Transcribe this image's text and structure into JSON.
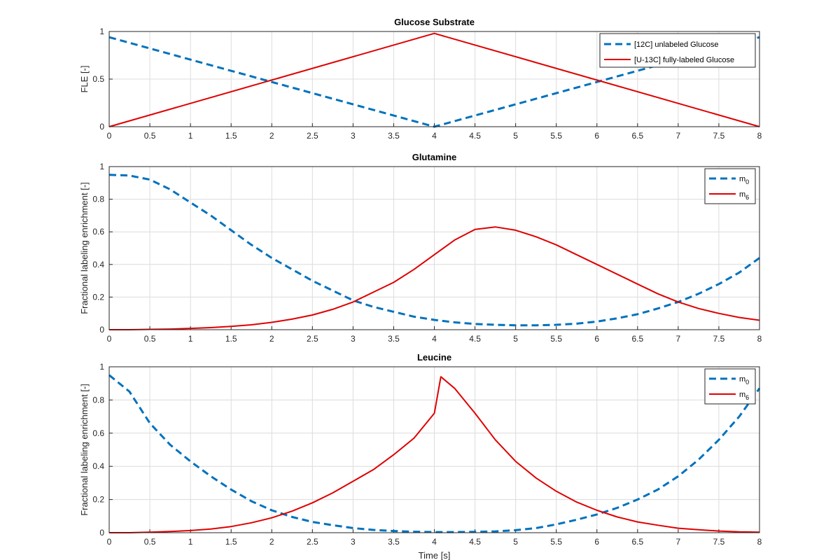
{
  "chart_data": [
    {
      "type": "line",
      "title": "Glucose Substrate",
      "xlabel": "",
      "ylabel": "FLE [-]",
      "xlim": [
        0,
        8
      ],
      "ylim": [
        0,
        1
      ],
      "xticks": [
        "0",
        "0.5",
        "1",
        "1.5",
        "2",
        "2.5",
        "3",
        "3.5",
        "4",
        "4.5",
        "5",
        "5.5",
        "6",
        "6.5",
        "7",
        "7.5",
        "8"
      ],
      "yticks": [
        "0",
        "0.5",
        "1"
      ],
      "grid": true,
      "legend_position": "top-right",
      "series": [
        {
          "name": "[12C] unlabeled Glucose",
          "legend_main": "[12C] unlabeled Glucose",
          "legend_sub": "",
          "color": "#0072BD",
          "style": "dashed",
          "x": [
            0,
            4,
            8
          ],
          "y": [
            0.94,
            0.0,
            0.94
          ]
        },
        {
          "name": "[U-13C] fully-labeled Glucose",
          "legend_main": "[U-13C] fully-labeled Glucose",
          "legend_sub": "",
          "color": "#E00000",
          "style": "solid",
          "x": [
            0,
            4,
            8
          ],
          "y": [
            0.0,
            0.98,
            0.0
          ]
        }
      ]
    },
    {
      "type": "line",
      "title": "Glutamine",
      "xlabel": "",
      "ylabel": "Fractional labeling enrichment [-]",
      "xlim": [
        0,
        8
      ],
      "ylim": [
        0,
        1
      ],
      "xticks": [
        "0",
        "0.5",
        "1",
        "1.5",
        "2",
        "2.5",
        "3",
        "3.5",
        "4",
        "4.5",
        "5",
        "5.5",
        "6",
        "6.5",
        "7",
        "7.5",
        "8"
      ],
      "yticks": [
        "0",
        "0.2",
        "0.4",
        "0.6",
        "0.8",
        "1"
      ],
      "grid": true,
      "legend_position": "top-right",
      "series": [
        {
          "name": "m0",
          "legend_main": "m",
          "legend_sub": "0",
          "color": "#0072BD",
          "style": "dashed",
          "x": [
            0,
            0.25,
            0.5,
            0.75,
            1,
            1.25,
            1.5,
            1.75,
            2,
            2.25,
            2.5,
            2.75,
            3,
            3.25,
            3.5,
            3.75,
            4,
            4.25,
            4.5,
            4.75,
            5,
            5.25,
            5.5,
            5.75,
            6,
            6.25,
            6.5,
            6.75,
            7,
            7.25,
            7.5,
            7.75,
            8
          ],
          "y": [
            0.95,
            0.945,
            0.92,
            0.86,
            0.78,
            0.7,
            0.61,
            0.52,
            0.44,
            0.37,
            0.3,
            0.24,
            0.18,
            0.14,
            0.11,
            0.08,
            0.06,
            0.045,
            0.035,
            0.03,
            0.027,
            0.027,
            0.03,
            0.037,
            0.05,
            0.07,
            0.095,
            0.13,
            0.17,
            0.22,
            0.28,
            0.35,
            0.44
          ]
        },
        {
          "name": "m6",
          "legend_main": "m",
          "legend_sub": "6",
          "color": "#E00000",
          "style": "solid",
          "x": [
            0,
            0.25,
            0.5,
            0.75,
            1,
            1.25,
            1.5,
            1.75,
            2,
            2.25,
            2.5,
            2.75,
            3,
            3.25,
            3.5,
            3.75,
            4,
            4.25,
            4.5,
            4.75,
            5,
            5.25,
            5.5,
            5.75,
            6,
            6.25,
            6.5,
            6.75,
            7,
            7.25,
            7.5,
            7.75,
            8
          ],
          "y": [
            0.0,
            0.0,
            0.002,
            0.004,
            0.008,
            0.013,
            0.02,
            0.03,
            0.045,
            0.065,
            0.09,
            0.125,
            0.17,
            0.23,
            0.29,
            0.37,
            0.46,
            0.55,
            0.615,
            0.63,
            0.61,
            0.57,
            0.52,
            0.46,
            0.4,
            0.34,
            0.28,
            0.22,
            0.17,
            0.13,
            0.1,
            0.075,
            0.058
          ]
        }
      ]
    },
    {
      "type": "line",
      "title": "Leucine",
      "xlabel": "Time [s]",
      "ylabel": "Fractional labeling enrichment [-]",
      "xlim": [
        0,
        8
      ],
      "ylim": [
        0,
        1
      ],
      "xticks": [
        "0",
        "0.5",
        "1",
        "1.5",
        "2",
        "2.5",
        "3",
        "3.5",
        "4",
        "4.5",
        "5",
        "5.5",
        "6",
        "6.5",
        "7",
        "7.5",
        "8"
      ],
      "yticks": [
        "0",
        "0.2",
        "0.4",
        "0.6",
        "0.8",
        "1"
      ],
      "grid": true,
      "legend_position": "top-right",
      "series": [
        {
          "name": "m0",
          "legend_main": "m",
          "legend_sub": "0",
          "color": "#0072BD",
          "style": "dashed",
          "x": [
            0,
            0.25,
            0.5,
            0.75,
            1,
            1.25,
            1.5,
            1.75,
            2,
            2.25,
            2.5,
            2.75,
            3,
            3.25,
            3.5,
            3.75,
            4,
            4.25,
            4.5,
            4.75,
            5,
            5.25,
            5.5,
            5.75,
            6,
            6.25,
            6.5,
            6.75,
            7,
            7.25,
            7.5,
            7.75,
            8
          ],
          "y": [
            0.95,
            0.85,
            0.66,
            0.53,
            0.43,
            0.34,
            0.26,
            0.19,
            0.135,
            0.095,
            0.065,
            0.045,
            0.028,
            0.017,
            0.01,
            0.006,
            0.004,
            0.004,
            0.005,
            0.008,
            0.015,
            0.028,
            0.05,
            0.078,
            0.11,
            0.15,
            0.2,
            0.26,
            0.34,
            0.44,
            0.56,
            0.7,
            0.87
          ]
        },
        {
          "name": "m6",
          "legend_main": "m",
          "legend_sub": "6",
          "color": "#E00000",
          "style": "solid",
          "x": [
            0,
            0.25,
            0.5,
            0.75,
            1,
            1.25,
            1.5,
            1.75,
            2,
            2.25,
            2.5,
            2.75,
            3,
            3.25,
            3.5,
            3.75,
            4,
            4.08,
            4.25,
            4.5,
            4.75,
            5,
            5.25,
            5.5,
            5.75,
            6,
            6.25,
            6.5,
            6.75,
            7,
            7.25,
            7.5,
            7.75,
            8
          ],
          "y": [
            0.0,
            0.0,
            0.003,
            0.007,
            0.013,
            0.022,
            0.037,
            0.06,
            0.09,
            0.13,
            0.18,
            0.24,
            0.31,
            0.38,
            0.47,
            0.57,
            0.72,
            0.94,
            0.87,
            0.72,
            0.56,
            0.43,
            0.33,
            0.25,
            0.185,
            0.135,
            0.095,
            0.065,
            0.045,
            0.027,
            0.018,
            0.01,
            0.005,
            0.003
          ]
        }
      ]
    }
  ]
}
